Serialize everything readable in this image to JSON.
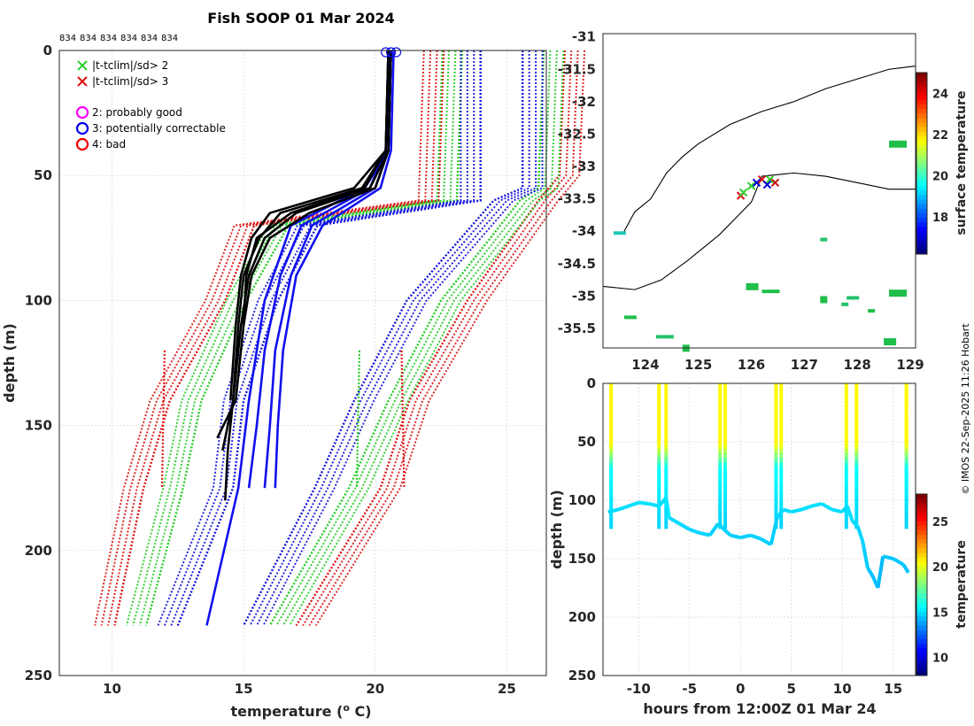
{
  "title": "Fish SOOP 01 Mar 2024",
  "copyright": "© IMOS 22-Sep-2025 11:26 Hobart",
  "chart_data": [
    {
      "id": "profiles",
      "type": "line",
      "xlabel": "temperature (",
      "xlabel_sup": "o",
      "xlabel_unit": " C)",
      "ylabel": "depth (m)",
      "xlim": [
        8,
        26.5
      ],
      "ylim": [
        250,
        0
      ],
      "xticks": [
        10,
        15,
        20,
        25
      ],
      "yticks": [
        0,
        50,
        100,
        150,
        200,
        250
      ],
      "top_ids": [
        "834",
        "834",
        "834",
        "834",
        "834",
        "834"
      ],
      "legend": [
        {
          "marker": "x",
          "color": "#2ecc2e",
          "label": "|t-tclim|/sd> 2"
        },
        {
          "marker": "x",
          "color": "#e01010",
          "label": "|t-tclim|/sd> 3"
        },
        {
          "marker": "o",
          "color": "#ff00ff",
          "label": "2: probably good"
        },
        {
          "marker": "o",
          "color": "#0000ee",
          "label": "3: potentially correctable"
        },
        {
          "marker": "o",
          "color": "#ee0000",
          "label": "4: bad"
        }
      ],
      "climatology": [
        {
          "name": "clim -3sd",
          "color": "#dd1111",
          "depth": [
            0,
            60,
            70,
            100,
            140,
            175,
            230
          ],
          "temp": [
            22.6,
            22.4,
            15.4,
            14.3,
            12.2,
            11.2,
            10.1
          ]
        },
        {
          "name": "clim -2sd",
          "color": "#22cc22",
          "depth": [
            0,
            60,
            70,
            100,
            140,
            175,
            230
          ],
          "temp": [
            23.3,
            23.1,
            16.7,
            15.1,
            13.4,
            12.7,
            11.3
          ]
        },
        {
          "name": "clim -1sd",
          "color": "#1111dd",
          "depth": [
            0,
            60,
            70,
            100,
            140,
            175,
            230
          ],
          "temp": [
            24.0,
            24.0,
            17.8,
            16.3,
            15.0,
            14.6,
            12.5
          ]
        },
        {
          "name": "clim +1sd",
          "color": "#1111dd",
          "depth": [
            0,
            55,
            60,
            100,
            140,
            175,
            230
          ],
          "temp": [
            25.6,
            25.6,
            24.5,
            21.2,
            19.2,
            17.7,
            15.0
          ]
        },
        {
          "name": "clim +2sd",
          "color": "#22cc22",
          "depth": [
            0,
            55,
            60,
            100,
            140,
            175,
            230
          ],
          "temp": [
            26.4,
            26.2,
            25.5,
            22.5,
            20.5,
            19.0,
            16.0
          ]
        },
        {
          "name": "clim +3sd",
          "color": "#dd1111",
          "depth": [
            0,
            50,
            60,
            100,
            140,
            175,
            230
          ],
          "temp": [
            27.2,
            27.0,
            26.2,
            23.5,
            21.3,
            20.2,
            17.0
          ]
        }
      ],
      "climatology_ends": [
        {
          "color": "#dd1111",
          "depth": [
            120,
            175
          ],
          "temp": [
            12.0,
            11.9
          ]
        },
        {
          "color": "#22cc22",
          "depth": [
            120,
            175
          ],
          "temp": [
            19.4,
            19.3
          ]
        },
        {
          "color": "#dd1111",
          "depth": [
            120,
            175
          ],
          "temp": [
            21.0,
            21.1
          ]
        }
      ],
      "blue_profiles": [
        {
          "depth": [
            0,
            40,
            55,
            70,
            90,
            120,
            150,
            175
          ],
          "temp": [
            20.6,
            20.5,
            20.0,
            17.6,
            16.8,
            16.2,
            16.0,
            15.8
          ]
        },
        {
          "depth": [
            0,
            40,
            55,
            70,
            90,
            120,
            150,
            175
          ],
          "temp": [
            20.6,
            20.4,
            19.8,
            17.2,
            16.4,
            15.8,
            15.5,
            15.2
          ]
        },
        {
          "depth": [
            0,
            40,
            55,
            70,
            90,
            120,
            150,
            175
          ],
          "temp": [
            20.7,
            20.6,
            20.2,
            18.0,
            17.0,
            16.5,
            16.3,
            16.2
          ]
        },
        {
          "depth": [
            0,
            40,
            55,
            70,
            100,
            140,
            175,
            230
          ],
          "temp": [
            20.6,
            20.5,
            19.6,
            16.8,
            15.8,
            15.2,
            14.8,
            13.6
          ]
        }
      ],
      "black_profiles": [
        {
          "depth": [
            0,
            40,
            55,
            65,
            75,
            90,
            110,
            140,
            160,
            180
          ],
          "temp": [
            20.5,
            20.4,
            19.5,
            16.4,
            15.6,
            15.0,
            14.8,
            14.6,
            14.4,
            14.3
          ]
        },
        {
          "depth": [
            0,
            40,
            55,
            65,
            75,
            90,
            110,
            140,
            160
          ],
          "temp": [
            20.6,
            20.5,
            19.8,
            17.0,
            15.8,
            15.2,
            14.9,
            14.6,
            14.2
          ]
        },
        {
          "depth": [
            0,
            40,
            55,
            65,
            75,
            90,
            110,
            140
          ],
          "temp": [
            20.5,
            20.4,
            19.2,
            16.0,
            15.3,
            14.9,
            14.7,
            14.5
          ]
        },
        {
          "depth": [
            0,
            40,
            55,
            65,
            75,
            90,
            110,
            140,
            155
          ],
          "temp": [
            20.6,
            20.5,
            20.0,
            17.5,
            16.0,
            15.3,
            15.0,
            14.7,
            14.0
          ]
        },
        {
          "depth": [
            0,
            40,
            55,
            65,
            75,
            90,
            110
          ],
          "temp": [
            20.5,
            20.4,
            19.6,
            16.8,
            15.5,
            15.1,
            15.0
          ]
        }
      ],
      "surface_flags": [
        20.4,
        20.6,
        20.8
      ]
    },
    {
      "id": "map",
      "type": "scatter",
      "xlim": [
        123.2,
        129.1
      ],
      "ylim": [
        -35.8,
        -30.95
      ],
      "xticks": [
        124,
        125,
        126,
        127,
        128,
        129
      ],
      "yticks": [
        -31,
        -31.5,
        -32,
        -32.5,
        -33,
        -33.5,
        -34,
        -34.5,
        -35,
        -35.5
      ],
      "ytick_labels": [
        "-31",
        "-31.5",
        "-32",
        "-32.5",
        "-33",
        "-33.5",
        "-34",
        "-34.5",
        "-35",
        "-35.5"
      ],
      "colorbar_label": "surface temperature",
      "colorbar_ticks": [
        18,
        20,
        22,
        24
      ],
      "colorbar_range": [
        16.2,
        25
      ],
      "shelf_north": {
        "lon": [
          123.6,
          123.8,
          124.1,
          124.4,
          124.7,
          125.0,
          125.6,
          126.2,
          126.8,
          127.4,
          128.0,
          128.6,
          129.1
        ],
        "lat": [
          -34.0,
          -33.7,
          -33.5,
          -33.1,
          -32.85,
          -32.65,
          -32.35,
          -32.15,
          -32.0,
          -31.8,
          -31.65,
          -31.5,
          -31.45
        ]
      },
      "shelf_south": {
        "lon": [
          123.2,
          123.8,
          124.3,
          124.8,
          125.4,
          126.0,
          126.2,
          126.8,
          127.4,
          128.0,
          128.6,
          129.1
        ],
        "lat": [
          -34.85,
          -34.9,
          -34.75,
          -34.45,
          -34.05,
          -33.55,
          -33.15,
          -33.1,
          -33.15,
          -33.25,
          -33.35,
          -33.35
        ]
      },
      "obs": [
        {
          "lon": 125.8,
          "lat": -33.45,
          "color": "#d01010"
        },
        {
          "lon": 125.85,
          "lat": -33.4,
          "color": "#2ecc2e"
        },
        {
          "lon": 126.0,
          "lat": -33.3,
          "color": "#2ecc2e"
        },
        {
          "lon": 126.1,
          "lat": -33.25,
          "color": "#0000dd"
        },
        {
          "lon": 126.2,
          "lat": -33.2,
          "color": "#d01010"
        },
        {
          "lon": 126.35,
          "lat": -33.2,
          "color": "#2ecc2e"
        },
        {
          "lon": 126.45,
          "lat": -33.25,
          "color": "#d01010"
        },
        {
          "lon": 126.3,
          "lat": -33.28,
          "color": "#0000dd"
        }
      ]
    },
    {
      "id": "track",
      "type": "scatter",
      "xlabel": "hours from 12:00Z 01 Mar 24",
      "ylabel": "depth (m)",
      "xlim": [
        -13.5,
        17.2
      ],
      "ylim": [
        250,
        0
      ],
      "xticks": [
        -10,
        -5,
        0,
        5,
        10,
        15
      ],
      "xtick_labels": [
        "-10",
        "-5",
        "0",
        "5",
        "10",
        "15"
      ],
      "yticks": [
        0,
        50,
        100,
        150,
        200,
        250
      ],
      "colorbar_label": "temperature",
      "colorbar_ticks": [
        10,
        15,
        20,
        25
      ],
      "colorbar_range": [
        8,
        28
      ],
      "bottom_hours": [
        -13,
        -12,
        -11,
        -10,
        -9,
        -8,
        -7.3,
        -7,
        -6,
        -5,
        -4,
        -3,
        -2.2,
        -1.6,
        -1,
        0,
        1,
        2,
        3,
        3.6,
        4.2,
        5,
        6,
        7,
        8,
        9,
        10,
        10.5,
        11.0,
        11.5,
        12,
        12.5,
        13,
        13.5,
        14,
        15,
        16,
        16.5
      ],
      "bottom_depth": [
        110,
        108,
        105,
        102,
        103,
        105,
        98,
        115,
        120,
        125,
        128,
        130,
        120,
        125,
        130,
        132,
        130,
        133,
        138,
        115,
        108,
        110,
        108,
        105,
        103,
        108,
        110,
        105,
        118,
        122,
        135,
        158,
        165,
        175,
        148,
        150,
        155,
        162
      ],
      "casts": [
        -12.7,
        -8.0,
        -7.3,
        -2.0,
        -1.5,
        3.5,
        4.0,
        10.4,
        11.4,
        16.3
      ]
    }
  ]
}
